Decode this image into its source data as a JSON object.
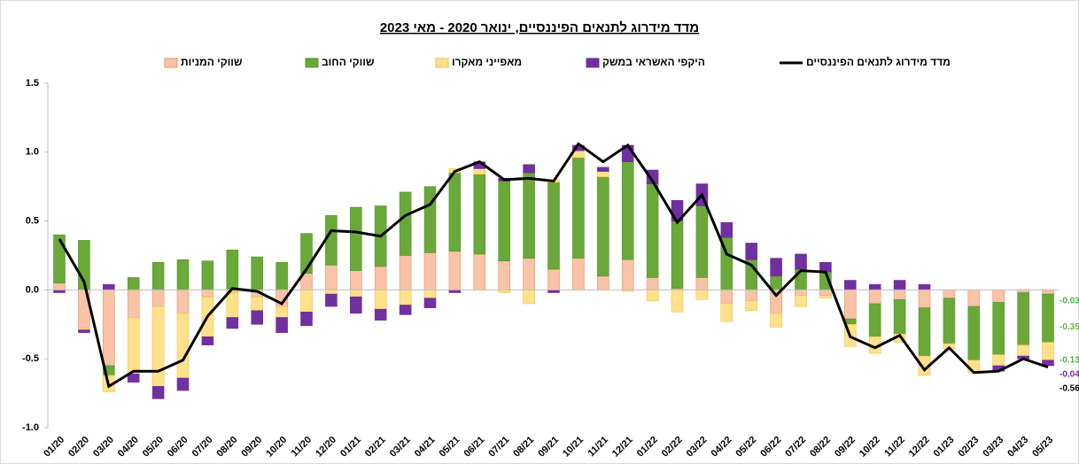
{
  "chart_data": {
    "type": "bar",
    "stacked": true,
    "title": "מדד מידרוג לתנאים הפיננסיים, ינואר 2020 - מאי 2023",
    "categories": [
      "01/20",
      "02/20",
      "03/20",
      "04/20",
      "05/20",
      "06/20",
      "07/20",
      "08/20",
      "09/20",
      "10/20",
      "11/20",
      "12/20",
      "01/21",
      "02/21",
      "03/21",
      "04/21",
      "05/21",
      "06/21",
      "07/21",
      "08/21",
      "09/21",
      "10/21",
      "11/21",
      "12/21",
      "01/22",
      "02/22",
      "03/22",
      "04/22",
      "05/22",
      "06/22",
      "07/22",
      "08/22",
      "09/22",
      "10/22",
      "11/22",
      "12/22",
      "01/23",
      "02/23",
      "03/23",
      "04/23",
      "05/23"
    ],
    "series": [
      {
        "name": "שווקי המניות",
        "type": "bar",
        "color": "#f8c3a6",
        "stroke": "#e8936a",
        "label_color": "#4caf50",
        "values": [
          0.05,
          -0.28,
          -0.55,
          -0.2,
          -0.12,
          -0.17,
          -0.05,
          -0.02,
          -0.05,
          -0.12,
          0.12,
          0.18,
          0.14,
          0.17,
          0.25,
          0.27,
          0.28,
          0.26,
          0.21,
          0.23,
          0.15,
          0.23,
          0.1,
          0.22,
          0.09,
          0.01,
          0.09,
          -0.1,
          -0.08,
          -0.17,
          -0.04,
          -0.04,
          -0.21,
          -0.1,
          -0.07,
          -0.13,
          -0.06,
          -0.12,
          -0.09,
          -0.02,
          -0.03
        ]
      },
      {
        "name": "שווקי החוב",
        "type": "bar",
        "color": "#6aa83a",
        "stroke": "#5a9530",
        "label_color": "#70ad47",
        "values": [
          0.35,
          0.36,
          -0.07,
          0.09,
          0.2,
          0.22,
          0.21,
          0.29,
          0.24,
          0.2,
          0.29,
          0.36,
          0.46,
          0.44,
          0.46,
          0.48,
          0.57,
          0.58,
          0.58,
          0.62,
          0.63,
          0.73,
          0.72,
          0.71,
          0.68,
          0.49,
          0.52,
          0.38,
          0.22,
          0.1,
          0.15,
          0.13,
          -0.04,
          -0.24,
          -0.25,
          -0.35,
          -0.33,
          -0.39,
          -0.38,
          -0.38,
          -0.35
        ]
      },
      {
        "name": "מאפייני מאקרו",
        "type": "bar",
        "color": "#ffe18c",
        "stroke": "#f0c040",
        "label_color": "#4caf50",
        "values": [
          0,
          -0.01,
          -0.12,
          -0.41,
          -0.58,
          -0.47,
          -0.29,
          -0.18,
          -0.1,
          -0.08,
          -0.16,
          -0.03,
          -0.05,
          -0.14,
          -0.11,
          -0.06,
          0.03,
          0.04,
          -0.02,
          -0.1,
          0.02,
          0.05,
          0.04,
          -0.01,
          -0.08,
          -0.16,
          -0.07,
          -0.13,
          -0.07,
          -0.1,
          -0.08,
          -0.02,
          -0.16,
          -0.12,
          -0.06,
          -0.14,
          -0.04,
          -0.09,
          -0.08,
          -0.08,
          -0.13
        ]
      },
      {
        "name": "היקפי האשראי במשק",
        "type": "bar",
        "color": "#7030a0",
        "stroke": "#7030a0",
        "label_color": "#7030a0",
        "values": [
          -0.02,
          -0.02,
          0.04,
          -0.06,
          -0.09,
          -0.09,
          -0.06,
          -0.08,
          -0.1,
          -0.11,
          -0.1,
          -0.09,
          -0.12,
          -0.08,
          -0.07,
          -0.07,
          -0.02,
          0.05,
          0.02,
          0.06,
          -0.02,
          0.04,
          0.03,
          0.12,
          0.1,
          0.15,
          0.16,
          0.11,
          0.12,
          0.13,
          0.11,
          0.07,
          0.07,
          0.04,
          0.07,
          0.04,
          0,
          0,
          -0.04,
          -0.02,
          -0.04
        ]
      },
      {
        "name": "מדד מידרוג לתנאים הפיננסיים",
        "type": "line",
        "color": "#000000",
        "label_color": "#000000",
        "values": [
          0.37,
          0.06,
          -0.7,
          -0.59,
          -0.59,
          -0.51,
          -0.19,
          0.01,
          -0.01,
          -0.1,
          0.15,
          0.43,
          0.42,
          0.39,
          0.54,
          0.62,
          0.86,
          0.93,
          0.8,
          0.81,
          0.79,
          1.06,
          0.93,
          1.05,
          0.79,
          0.49,
          0.69,
          0.26,
          0.18,
          -0.04,
          0.14,
          0.13,
          -0.34,
          -0.42,
          -0.33,
          -0.58,
          -0.42,
          -0.6,
          -0.59,
          -0.5,
          -0.56
        ]
      }
    ],
    "ylim": [
      -1.0,
      1.5
    ],
    "yticks": [
      {
        "value": -1.0,
        "label": "-1.0"
      },
      -0.5,
      {
        "value": 0,
        "label": "0.0"
      },
      0.5,
      {
        "value": 1.0,
        "label": "1.0"
      },
      1.5
    ],
    "grid": false
  }
}
